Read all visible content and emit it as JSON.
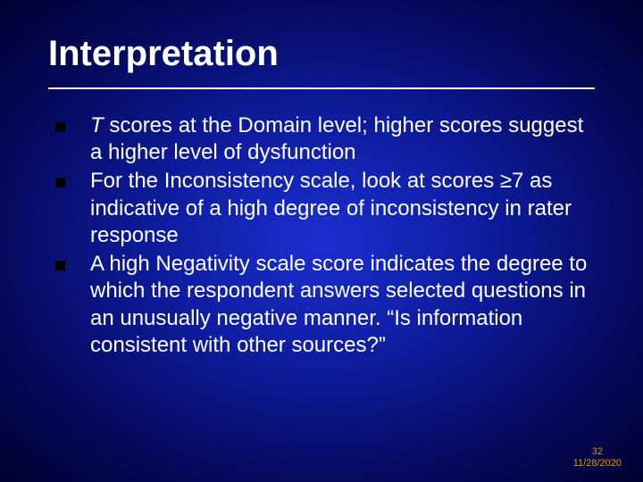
{
  "title": "Interpretation",
  "bullets": [
    {
      "italic_lead": "T",
      "text": " scores at the Domain level; higher scores suggest a higher level of dysfunction"
    },
    {
      "italic_lead": "",
      "text": "For the Inconsistency scale, look at scores ≥7 as indicative of a high degree of inconsistency in rater response"
    },
    {
      "italic_lead": "",
      "text": "A high Negativity scale score indicates the degree to which the respondent answers selected questions in an unusually negative manner. “Is information consistent with other sources?”"
    }
  ],
  "footer": {
    "page": "32",
    "date": "11/28/2020"
  },
  "style": {
    "title_fontsize": 40,
    "body_fontsize": 24,
    "footer_fontsize": 11,
    "title_color": "#ffffff",
    "body_color": "#ffffff",
    "footer_color": "#d4a000",
    "bullet_marker_color": "#000000",
    "background_gradient": [
      "#1a2fd0",
      "#0e1da0",
      "#050a60",
      "#000030"
    ]
  }
}
